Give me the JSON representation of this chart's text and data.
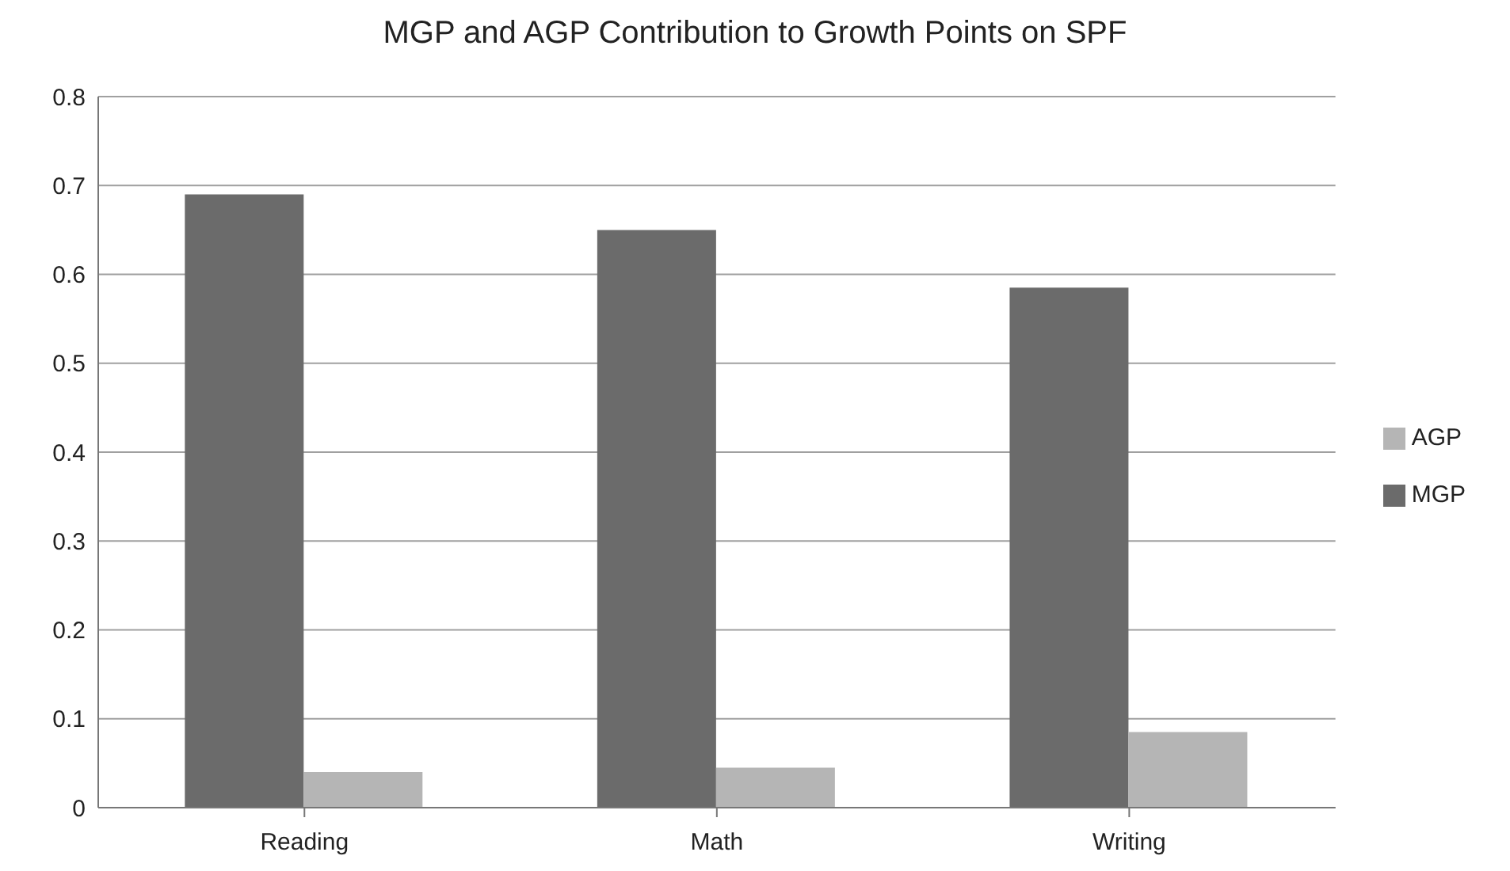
{
  "chart_data": {
    "type": "bar",
    "title": "MGP and AGP Contribution to Growth Points on SPF",
    "categories": [
      "Reading",
      "Math",
      "Writing"
    ],
    "series": [
      {
        "name": "MGP",
        "color": "#6b6b6b",
        "values": [
          0.69,
          0.65,
          0.585
        ]
      },
      {
        "name": "AGP",
        "color": "#b5b5b5",
        "values": [
          0.04,
          0.045,
          0.085
        ]
      }
    ],
    "ylim": [
      0,
      0.8
    ],
    "yticks": [
      0,
      0.1,
      0.2,
      0.3,
      0.4,
      0.5,
      0.6,
      0.7,
      0.8
    ],
    "grid": "y",
    "legend": "right"
  }
}
